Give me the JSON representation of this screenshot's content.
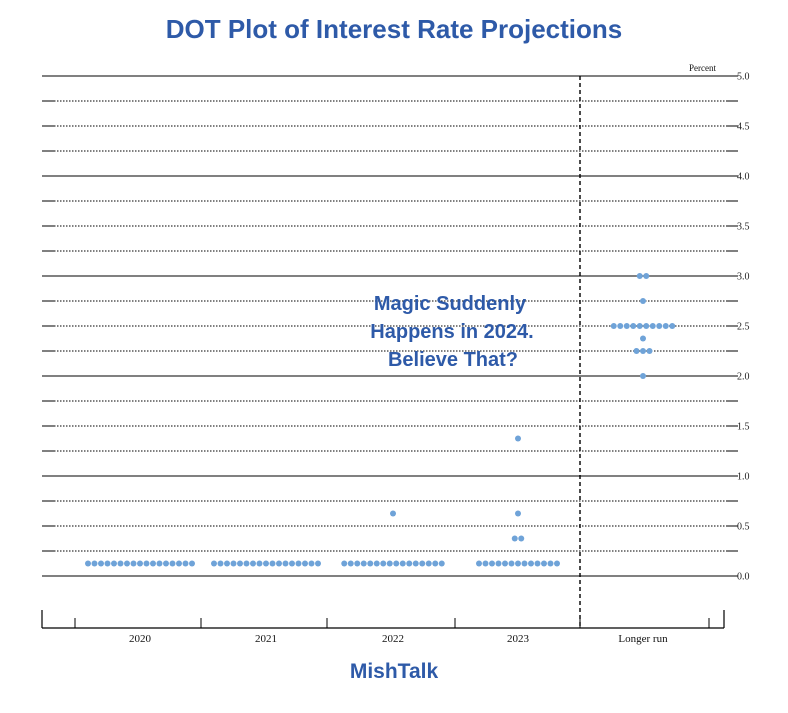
{
  "header": {
    "title": "DOT Plot of Interest Rate Projections"
  },
  "footer": {
    "text": "MishTalk"
  },
  "colors": {
    "title": "#2e5aa8",
    "dot": "#6fa3d8",
    "annotation": "#2e5aa8"
  },
  "chart_data": {
    "type": "scatter",
    "title": "DOT Plot of Interest Rate Projections",
    "unit_label": "Percent",
    "ylim": [
      -0.5,
      5.0
    ],
    "y_ticks": [
      "0.0",
      "0.5",
      "1.0",
      "1.5",
      "2.0",
      "2.5",
      "3.0",
      "3.5",
      "4.0",
      "4.5",
      "5.0"
    ],
    "categories": [
      "2020",
      "2021",
      "2022",
      "2023",
      "Longer run"
    ],
    "grid": "dotted every 0.25, solid every 1.0",
    "annotation": {
      "lines": [
        "Magic Suddenly",
        "Happens in 2024.",
        "Believe That?"
      ]
    },
    "dots": [
      {
        "category": "2020",
        "value": 0.125,
        "count": 17
      },
      {
        "category": "2021",
        "value": 0.125,
        "count": 17
      },
      {
        "category": "2022",
        "value": 0.125,
        "count": 16
      },
      {
        "category": "2022",
        "value": 0.625,
        "count": 1
      },
      {
        "category": "2023",
        "value": 0.125,
        "count": 13
      },
      {
        "category": "2023",
        "value": 0.375,
        "count": 2
      },
      {
        "category": "2023",
        "value": 0.625,
        "count": 1
      },
      {
        "category": "2023",
        "value": 1.375,
        "count": 1
      },
      {
        "category": "Longer run",
        "value": 2.0,
        "count": 1
      },
      {
        "category": "Longer run",
        "value": 2.25,
        "count": 3
      },
      {
        "category": "Longer run",
        "value": 2.375,
        "count": 1
      },
      {
        "category": "Longer run",
        "value": 2.5,
        "count": 10
      },
      {
        "category": "Longer run",
        "value": 2.75,
        "count": 1
      },
      {
        "category": "Longer run",
        "value": 3.0,
        "count": 2
      }
    ]
  }
}
